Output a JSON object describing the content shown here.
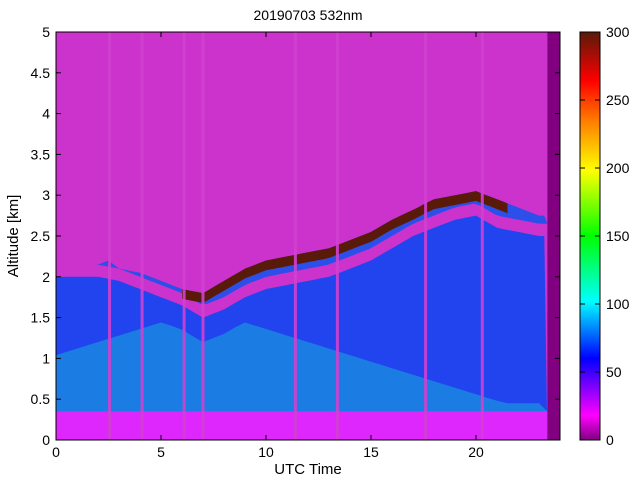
{
  "chart_data": {
    "type": "heatmap",
    "title": "20190703 532nm",
    "xlabel": "UTC Time",
    "ylabel": "Altitude [km]",
    "xlim": [
      0,
      24
    ],
    "ylim": [
      0,
      5
    ],
    "x_ticks": [
      0,
      5,
      10,
      15,
      20
    ],
    "x_tick_labels": [
      "0",
      "5",
      "10",
      "15",
      "20"
    ],
    "y_ticks": [
      0,
      0.5,
      1,
      1.5,
      2,
      2.5,
      3,
      3.5,
      4,
      4.5,
      5
    ],
    "y_tick_labels": [
      "0",
      "0.5",
      "1",
      "1.5",
      "2",
      "2.5",
      "3",
      "3.5",
      "4",
      "4.5",
      "5"
    ],
    "colorbar": {
      "range": [
        0,
        300
      ],
      "ticks": [
        0,
        50,
        100,
        150,
        200,
        250,
        300
      ],
      "tick_labels": [
        "0",
        "50",
        "100",
        "150",
        "200",
        "250",
        "300"
      ],
      "colormap": [
        "#800080",
        "#ff00ff",
        "#0000ff",
        "#00ffff",
        "#00ff00",
        "#ffff00",
        "#ff8000",
        "#ff0000",
        "#5a1a0a"
      ]
    },
    "data_extent_hours": [
      0,
      23.4
    ],
    "cloud_top_km": {
      "x": [
        0,
        1,
        2,
        2.5,
        3,
        4,
        5,
        6,
        7,
        8,
        9,
        10,
        11,
        12,
        13,
        14,
        15,
        16,
        17,
        17.6,
        18,
        19,
        20,
        21,
        22,
        23
      ],
      "y": [
        2.15,
        2.15,
        2.15,
        2.2,
        2.1,
        2.05,
        1.95,
        1.85,
        1.8,
        1.95,
        2.1,
        2.2,
        2.25,
        2.3,
        2.35,
        2.45,
        2.55,
        2.7,
        2.82,
        2.9,
        2.95,
        3.0,
        3.05,
        2.95,
        2.85,
        2.75
      ]
    },
    "cloud_base_km": {
      "x": [
        0,
        1,
        2,
        3,
        4,
        5,
        6,
        7,
        8,
        9,
        10,
        11,
        12,
        13,
        14,
        15,
        16,
        17,
        18,
        19,
        20,
        21,
        22,
        23
      ],
      "y": [
        2.0,
        2.0,
        2.0,
        1.95,
        1.85,
        1.75,
        1.65,
        1.5,
        1.6,
        1.75,
        1.85,
        1.9,
        1.95,
        2.0,
        2.1,
        2.2,
        2.35,
        2.5,
        2.6,
        2.7,
        2.75,
        2.6,
        2.55,
        2.5
      ]
    },
    "mixed_layer_top_km": 0.35,
    "gaps_hours": [
      2.55,
      4.1,
      6.1,
      7.0,
      11.4,
      13.4,
      17.6,
      20.3
    ]
  }
}
